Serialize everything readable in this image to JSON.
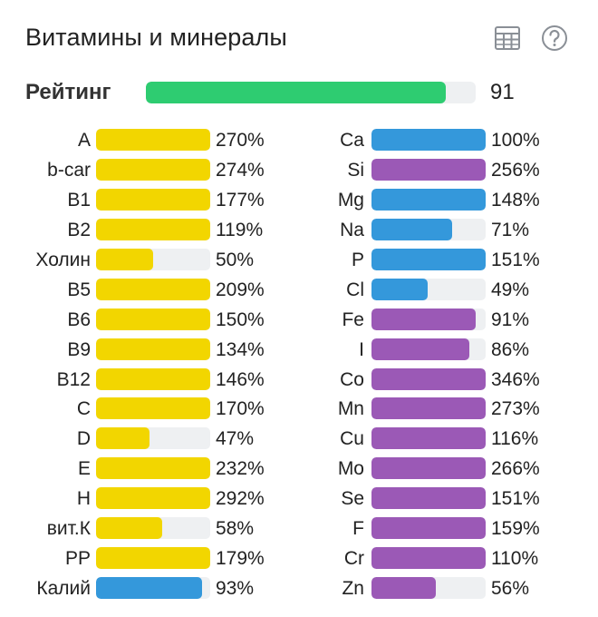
{
  "header": {
    "title": "Витамины и минералы",
    "table_icon": "table-icon",
    "help_icon": "help-icon"
  },
  "rating": {
    "label": "Рейтинг",
    "value": "91",
    "fill_fraction": 0.91,
    "color": "#2ecc71"
  },
  "colors": {
    "vitamin": "#f2d600",
    "mineral_blue": "#3498db",
    "mineral_purple": "#9b59b6",
    "track": "#eef0f2"
  },
  "left_items": [
    {
      "label": "A",
      "value": "270%",
      "fill": 1.0,
      "color": "#f2d600"
    },
    {
      "label": "b-car",
      "value": "274%",
      "fill": 1.0,
      "color": "#f2d600"
    },
    {
      "label": "B1",
      "value": "177%",
      "fill": 1.0,
      "color": "#f2d600"
    },
    {
      "label": "B2",
      "value": "119%",
      "fill": 1.0,
      "color": "#f2d600"
    },
    {
      "label": "Холин",
      "value": "50%",
      "fill": 0.5,
      "color": "#f2d600"
    },
    {
      "label": "B5",
      "value": "209%",
      "fill": 1.0,
      "color": "#f2d600"
    },
    {
      "label": "B6",
      "value": "150%",
      "fill": 1.0,
      "color": "#f2d600"
    },
    {
      "label": "B9",
      "value": "134%",
      "fill": 1.0,
      "color": "#f2d600"
    },
    {
      "label": "B12",
      "value": "146%",
      "fill": 1.0,
      "color": "#f2d600"
    },
    {
      "label": "C",
      "value": "170%",
      "fill": 1.0,
      "color": "#f2d600"
    },
    {
      "label": "D",
      "value": "47%",
      "fill": 0.47,
      "color": "#f2d600"
    },
    {
      "label": "E",
      "value": "232%",
      "fill": 1.0,
      "color": "#f2d600"
    },
    {
      "label": "H",
      "value": "292%",
      "fill": 1.0,
      "color": "#f2d600"
    },
    {
      "label": "вит.К",
      "value": "58%",
      "fill": 0.58,
      "color": "#f2d600"
    },
    {
      "label": "PP",
      "value": "179%",
      "fill": 1.0,
      "color": "#f2d600"
    },
    {
      "label": "Калий",
      "value": "93%",
      "fill": 0.93,
      "color": "#3498db"
    }
  ],
  "right_items": [
    {
      "label": "Ca",
      "value": "100%",
      "fill": 1.0,
      "color": "#3498db"
    },
    {
      "label": "Si",
      "value": "256%",
      "fill": 1.0,
      "color": "#9b59b6"
    },
    {
      "label": "Mg",
      "value": "148%",
      "fill": 1.0,
      "color": "#3498db"
    },
    {
      "label": "Na",
      "value": "71%",
      "fill": 0.71,
      "color": "#3498db"
    },
    {
      "label": "P",
      "value": "151%",
      "fill": 1.0,
      "color": "#3498db"
    },
    {
      "label": "Cl",
      "value": "49%",
      "fill": 0.49,
      "color": "#3498db"
    },
    {
      "label": "Fe",
      "value": "91%",
      "fill": 0.91,
      "color": "#9b59b6"
    },
    {
      "label": "I",
      "value": "86%",
      "fill": 0.86,
      "color": "#9b59b6"
    },
    {
      "label": "Co",
      "value": "346%",
      "fill": 1.0,
      "color": "#9b59b6"
    },
    {
      "label": "Mn",
      "value": "273%",
      "fill": 1.0,
      "color": "#9b59b6"
    },
    {
      "label": "Cu",
      "value": "116%",
      "fill": 1.0,
      "color": "#9b59b6"
    },
    {
      "label": "Mo",
      "value": "266%",
      "fill": 1.0,
      "color": "#9b59b6"
    },
    {
      "label": "Se",
      "value": "151%",
      "fill": 1.0,
      "color": "#9b59b6"
    },
    {
      "label": "F",
      "value": "159%",
      "fill": 1.0,
      "color": "#9b59b6"
    },
    {
      "label": "Cr",
      "value": "110%",
      "fill": 1.0,
      "color": "#9b59b6"
    },
    {
      "label": "Zn",
      "value": "56%",
      "fill": 0.56,
      "color": "#9b59b6"
    }
  ]
}
